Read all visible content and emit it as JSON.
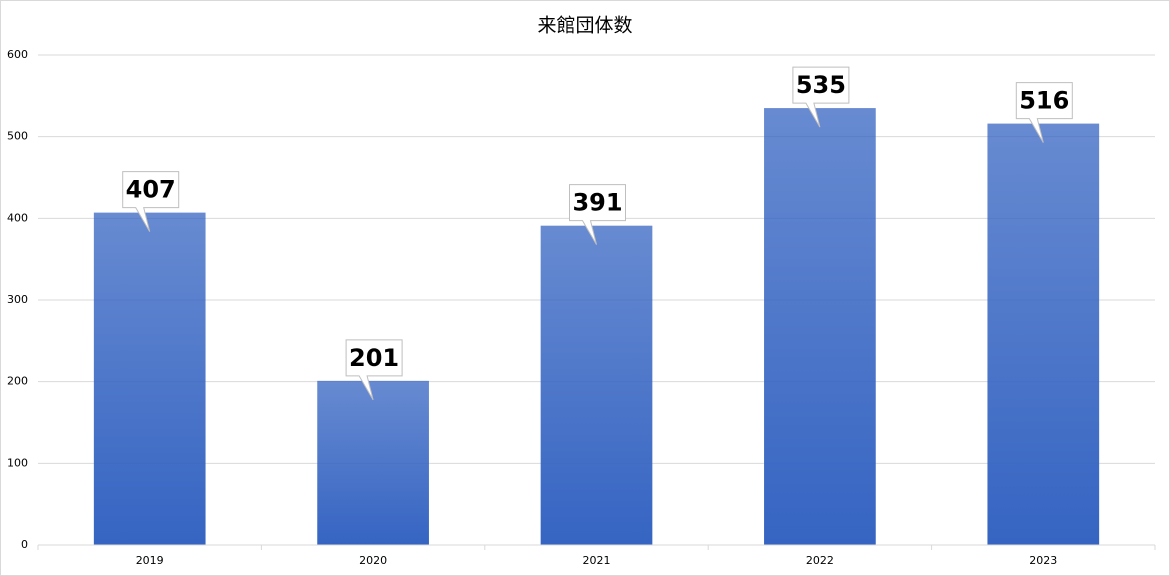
{
  "chart_data": {
    "type": "bar",
    "title": "来館団体数",
    "categories": [
      "2019",
      "2020",
      "2021",
      "2022",
      "2023"
    ],
    "values": [
      407,
      201,
      391,
      535,
      516
    ],
    "color": "#3564c2",
    "ylim": [
      0,
      600
    ],
    "yticks": [
      0,
      100,
      200,
      300,
      400,
      500,
      600
    ],
    "grid": true
  }
}
